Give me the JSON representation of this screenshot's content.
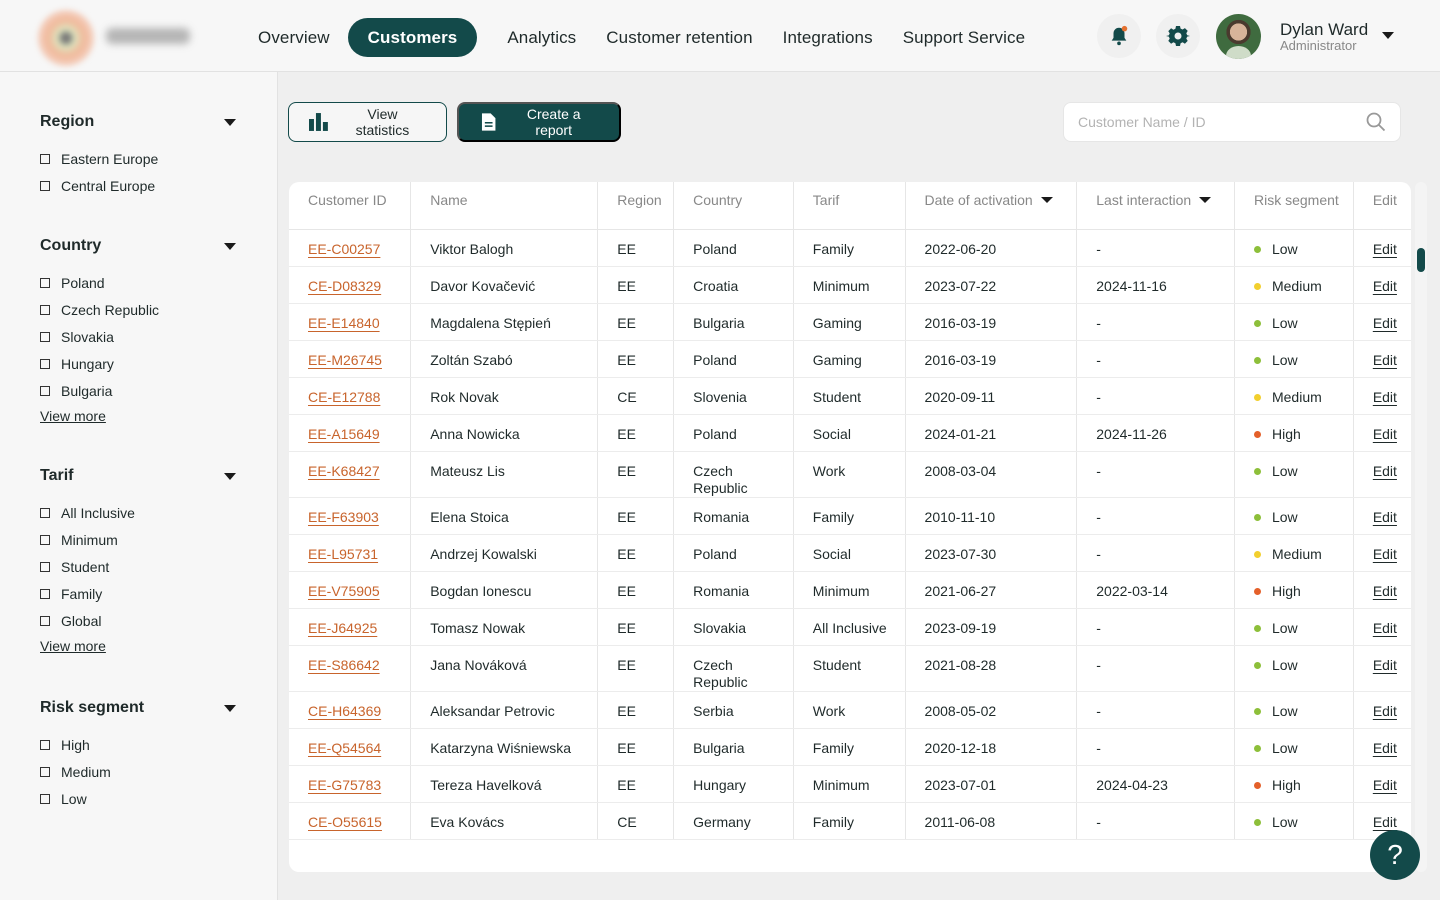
{
  "brand": {
    "logo_text": "Telecom"
  },
  "nav": [
    {
      "label": "Overview"
    },
    {
      "label": "Customers",
      "active": true
    },
    {
      "label": "Analytics"
    },
    {
      "label": "Customer retention"
    },
    {
      "label": "Integrations"
    },
    {
      "label": "Support Service"
    }
  ],
  "user": {
    "name": "Dylan Ward",
    "role": "Administrator"
  },
  "colors": {
    "accent": "#134a4a",
    "link": "#c8642c",
    "low": "#8dbf3a",
    "medium": "#f2cf2e",
    "high": "#e4602a",
    "notification": "#e4702f"
  },
  "filters": [
    {
      "title": "Region",
      "options": [
        "Eastern Europe",
        "Central Europe"
      ]
    },
    {
      "title": "Country",
      "options": [
        "Poland",
        "Czech Republic",
        "Slovakia",
        "Hungary",
        "Bulgaria"
      ],
      "more": "View more"
    },
    {
      "title": "Tarif",
      "options": [
        "All Inclusive",
        "Minimum",
        "Student",
        "Family",
        "Global"
      ],
      "more": "View more"
    },
    {
      "title": "Risk segment",
      "options": [
        "High",
        "Medium",
        "Low"
      ]
    }
  ],
  "toolbar": {
    "view_stats": "View statistics",
    "create_report": "Create a report",
    "search_placeholder": "Customer Name / ID"
  },
  "table": {
    "columns": [
      "Customer ID",
      "Name",
      "Region",
      "Country",
      "Tarif",
      "Date of activation",
      "Last interaction",
      "Risk segment",
      "Edit"
    ],
    "edit_label": "Edit",
    "rows": [
      [
        "EE-C00257",
        "Viktor Balogh",
        "EE",
        "Poland",
        "Family",
        "2022-06-20",
        "-",
        "Low"
      ],
      [
        "CE-D08329",
        "Davor Kovačević",
        "EE",
        "Croatia",
        "Minimum",
        "2023-07-22",
        "2024-11-16",
        "Medium"
      ],
      [
        "EE-E14840",
        "Magdalena Stępień",
        "EE",
        "Bulgaria",
        "Gaming",
        "2016-03-19",
        "-",
        "Low"
      ],
      [
        "EE-M26745",
        "Zoltán Szabó",
        "EE",
        "Poland",
        "Gaming",
        "2016-03-19",
        "-",
        "Low"
      ],
      [
        "CE-E12788",
        "Rok Novak",
        "CE",
        "Slovenia",
        "Student",
        "2020-09-11",
        "-",
        "Medium"
      ],
      [
        "EE-A15649",
        "Anna Nowicka",
        "EE",
        "Poland",
        "Social",
        "2024-01-21",
        "2024-11-26",
        "High"
      ],
      [
        "EE-K68427",
        "Mateusz Lis",
        "EE",
        "Czech Republic",
        "Work",
        "2008-03-04",
        "-",
        "Low"
      ],
      [
        "EE-F63903",
        "Elena Stoica",
        "EE",
        "Romania",
        "Family",
        "2010-11-10",
        "-",
        "Low"
      ],
      [
        "EE-L95731",
        "Andrzej Kowalski",
        "EE",
        "Poland",
        "Social",
        "2023-07-30",
        "-",
        "Medium"
      ],
      [
        "EE-V75905",
        "Bogdan Ionescu",
        "EE",
        "Romania",
        "Minimum",
        "2021-06-27",
        "2022-03-14",
        "High"
      ],
      [
        "EE-J64925",
        "Tomasz Nowak",
        "EE",
        "Slovakia",
        "All Inclusive",
        "2023-09-19",
        "-",
        "Low"
      ],
      [
        "EE-S86642",
        "Jana Nováková",
        "EE",
        "Czech Republic",
        "Student",
        "2021-08-28",
        "-",
        "Low"
      ],
      [
        "CE-H64369",
        "Aleksandar Petrovic",
        "EE",
        "Serbia",
        "Work",
        "2008-05-02",
        "-",
        "Low"
      ],
      [
        "EE-Q54564",
        "Katarzyna Wiśniewska",
        "EE",
        "Bulgaria",
        "Family",
        "2020-12-18",
        "-",
        "Low"
      ],
      [
        "EE-G75783",
        "Tereza Havelková",
        "EE",
        "Hungary",
        "Minimum",
        "2023-07-01",
        "2024-04-23",
        "High"
      ],
      [
        "CE-O55615",
        "Eva Kovács",
        "CE",
        "Germany",
        "Family",
        "2011-06-08",
        "-",
        "Low"
      ]
    ]
  },
  "help": {
    "label": "?"
  }
}
